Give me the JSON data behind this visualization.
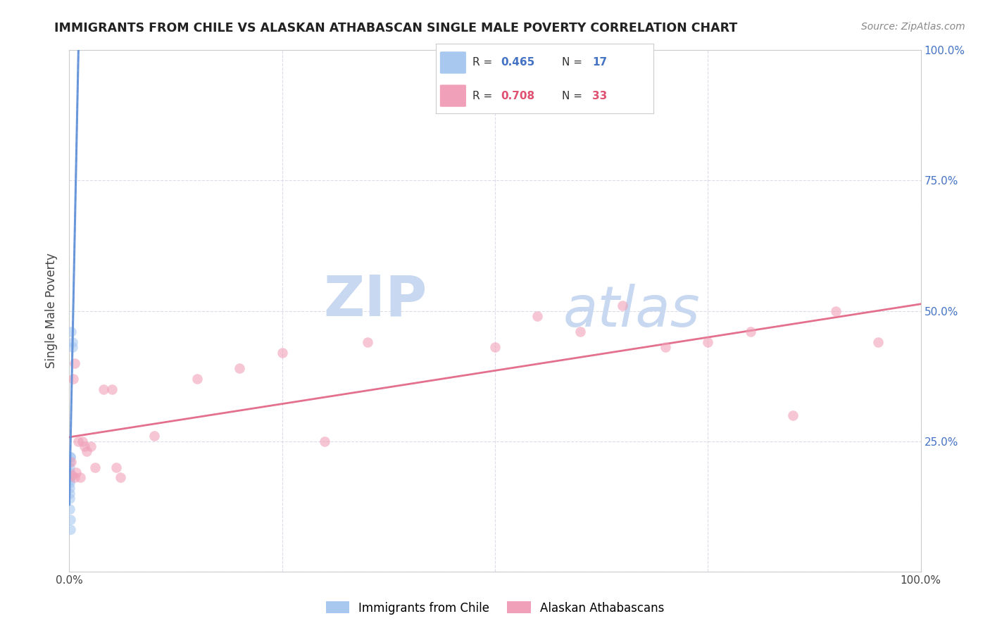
{
  "title": "IMMIGRANTS FROM CHILE VS ALASKAN ATHABASCAN SINGLE MALE POVERTY CORRELATION CHART",
  "source": "Source: ZipAtlas.com",
  "ylabel": "Single Male Poverty",
  "xlim": [
    0,
    1.0
  ],
  "ylim": [
    0,
    1.0
  ],
  "background_color": "#ffffff",
  "grid_color": "#d8d8e8",
  "chile_label": "Immigrants from Chile",
  "chile_color": "#a8c8f0",
  "chile_R": 0.465,
  "chile_N": 17,
  "chile_x": [
    0.002,
    0.004,
    0.004,
    0.001,
    0.001,
    0.0005,
    0.0005,
    0.0005,
    0.0003,
    0.0003,
    0.0003,
    0.0003,
    0.0003,
    0.0005,
    0.0005,
    0.001,
    0.001
  ],
  "chile_y": [
    0.46,
    0.44,
    0.43,
    0.22,
    0.22,
    0.21,
    0.2,
    0.19,
    0.18,
    0.175,
    0.17,
    0.16,
    0.15,
    0.14,
    0.12,
    0.1,
    0.08
  ],
  "alaska_label": "Alaskan Athabascans",
  "alaska_color": "#f0a0b8",
  "alaska_R": 0.708,
  "alaska_N": 33,
  "alaska_x": [
    0.002,
    0.003,
    0.005,
    0.006,
    0.006,
    0.008,
    0.01,
    0.013,
    0.015,
    0.018,
    0.02,
    0.025,
    0.03,
    0.04,
    0.05,
    0.055,
    0.06,
    0.1,
    0.15,
    0.2,
    0.25,
    0.3,
    0.35,
    0.5,
    0.55,
    0.6,
    0.65,
    0.7,
    0.75,
    0.8,
    0.85,
    0.9,
    0.95
  ],
  "alaska_y": [
    0.21,
    0.185,
    0.37,
    0.4,
    0.18,
    0.19,
    0.25,
    0.18,
    0.25,
    0.24,
    0.23,
    0.24,
    0.2,
    0.35,
    0.35,
    0.2,
    0.18,
    0.26,
    0.37,
    0.39,
    0.42,
    0.25,
    0.44,
    0.43,
    0.49,
    0.46,
    0.51,
    0.43,
    0.44,
    0.46,
    0.3,
    0.5,
    0.44
  ],
  "chile_trend_color": "#6090d8",
  "alaska_trend_color": "#e06080",
  "chile_trend_style": "--",
  "alaska_trend_style": "-",
  "watermark_zip": "ZIP",
  "watermark_atlas": "atlas",
  "watermark_color": "#c8d8f0",
  "marker_size": 110,
  "marker_alpha": 0.6,
  "tick_color": "#4472c4",
  "legend_R_color_chile": "#4472c4",
  "legend_R_color_alaska": "#e05070"
}
